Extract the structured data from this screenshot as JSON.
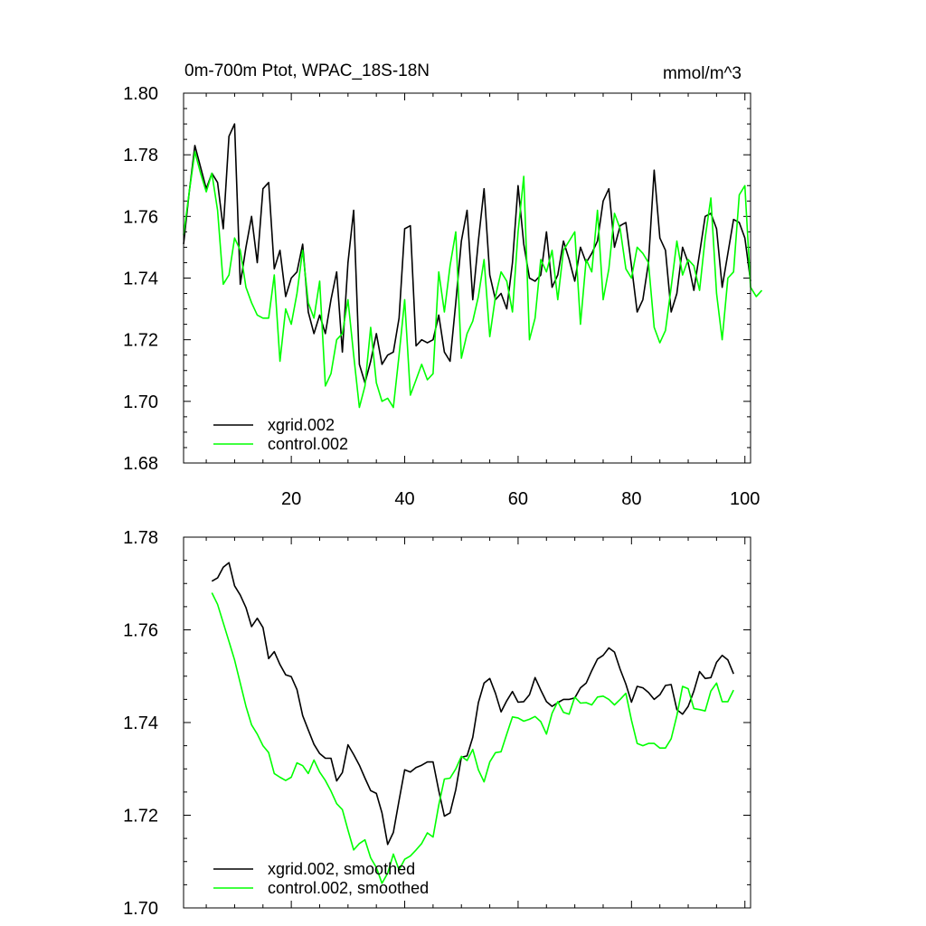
{
  "chart_data": [
    {
      "type": "line",
      "title": "0m-700m Ptot, WPAC_18S-18N",
      "units": "mmol/m^3",
      "xlim": [
        1,
        101
      ],
      "ylim": [
        1.68,
        1.8
      ],
      "xticks": [
        20,
        40,
        60,
        80,
        100
      ],
      "xtick_labels": [
        "20",
        "40",
        "60",
        "80",
        "100"
      ],
      "yticks": [
        1.68,
        1.7,
        1.72,
        1.74,
        1.76,
        1.78,
        1.8
      ],
      "ytick_labels": [
        "1.68",
        "1.70",
        "1.72",
        "1.74",
        "1.76",
        "1.78",
        "1.80"
      ],
      "legend": {
        "position": "bottom-left",
        "entries": [
          "xgrid.002",
          "control.002"
        ]
      },
      "series": [
        {
          "name": "xgrid.002",
          "color": "#000000",
          "x_start": 1,
          "values": [
            1.751,
            1.768,
            1.783,
            1.776,
            1.769,
            1.774,
            1.771,
            1.756,
            1.786,
            1.79,
            1.738,
            1.75,
            1.76,
            1.745,
            1.769,
            1.771,
            1.743,
            1.749,
            1.734,
            1.74,
            1.742,
            1.751,
            1.729,
            1.722,
            1.728,
            1.722,
            1.733,
            1.742,
            1.716,
            1.745,
            1.762,
            1.712,
            1.706,
            1.713,
            1.722,
            1.712,
            1.715,
            1.716,
            1.727,
            1.756,
            1.757,
            1.718,
            1.72,
            1.719,
            1.72,
            1.728,
            1.716,
            1.713,
            1.732,
            1.752,
            1.762,
            1.733,
            1.752,
            1.769,
            1.741,
            1.733,
            1.735,
            1.73,
            1.745,
            1.77,
            1.751,
            1.74,
            1.739,
            1.741,
            1.755,
            1.737,
            1.741,
            1.752,
            1.746,
            1.739,
            1.75,
            1.745,
            1.748,
            1.752,
            1.765,
            1.769,
            1.75,
            1.757,
            1.758,
            1.744,
            1.729,
            1.733,
            1.745,
            1.775,
            1.753,
            1.749,
            1.729,
            1.735,
            1.75,
            1.745,
            1.736,
            1.748,
            1.76,
            1.761,
            1.756,
            1.737,
            1.748,
            1.759,
            1.758,
            1.753,
            1.739
          ]
        },
        {
          "name": "control.002",
          "color": "#00ff00",
          "x_start": 1,
          "values": [
            1.754,
            1.768,
            1.781,
            1.774,
            1.768,
            1.774,
            1.762,
            1.738,
            1.741,
            1.753,
            1.749,
            1.737,
            1.732,
            1.728,
            1.727,
            1.727,
            1.741,
            1.713,
            1.73,
            1.725,
            1.735,
            1.749,
            1.732,
            1.727,
            1.739,
            1.705,
            1.709,
            1.72,
            1.722,
            1.733,
            1.715,
            1.698,
            1.705,
            1.724,
            1.706,
            1.7,
            1.701,
            1.698,
            1.715,
            1.733,
            1.702,
            1.707,
            1.712,
            1.707,
            1.709,
            1.742,
            1.729,
            1.744,
            1.755,
            1.714,
            1.722,
            1.726,
            1.734,
            1.746,
            1.721,
            1.734,
            1.742,
            1.739,
            1.729,
            1.755,
            1.773,
            1.72,
            1.727,
            1.746,
            1.742,
            1.749,
            1.733,
            1.749,
            1.752,
            1.755,
            1.725,
            1.746,
            1.742,
            1.762,
            1.733,
            1.743,
            1.761,
            1.756,
            1.743,
            1.74,
            1.75,
            1.748,
            1.745,
            1.724,
            1.719,
            1.723,
            1.737,
            1.752,
            1.741,
            1.746,
            1.744,
            1.736,
            1.753,
            1.766,
            1.735,
            1.72,
            1.74,
            1.742,
            1.767,
            1.77,
            1.737,
            1.734,
            1.736
          ]
        }
      ]
    },
    {
      "type": "line",
      "xlim": [
        1,
        101
      ],
      "ylim": [
        1.7,
        1.78
      ],
      "xticks": [
        20,
        40,
        60,
        80,
        100
      ],
      "yticks": [
        1.7,
        1.72,
        1.74,
        1.76,
        1.78
      ],
      "ytick_labels": [
        "1.70",
        "1.72",
        "1.74",
        "1.76",
        "1.78"
      ],
      "legend": {
        "position": "bottom-left",
        "entries": [
          "xgrid.002, smoothed",
          "control.002, smoothed"
        ]
      },
      "series": [
        {
          "name": "xgrid.002, smoothed",
          "color": "#000000",
          "x_start": 6,
          "values": [
            1.7705,
            1.7712,
            1.7735,
            1.7745,
            1.7695,
            1.7675,
            1.7648,
            1.7607,
            1.7625,
            1.7605,
            1.7538,
            1.7553,
            1.7525,
            1.7503,
            1.7499,
            1.7471,
            1.7415,
            1.7384,
            1.7353,
            1.7333,
            1.7323,
            1.7323,
            1.7274,
            1.7292,
            1.7352,
            1.7331,
            1.7308,
            1.728,
            1.7253,
            1.7247,
            1.7205,
            1.7137,
            1.7163,
            1.7232,
            1.7298,
            1.7293,
            1.7303,
            1.7308,
            1.7315,
            1.7315,
            1.7253,
            1.7198,
            1.7205,
            1.7255,
            1.7325,
            1.7328,
            1.7368,
            1.7443,
            1.7485,
            1.7495,
            1.7463,
            1.7423,
            1.7447,
            1.7467,
            1.7444,
            1.7445,
            1.746,
            1.7497,
            1.747,
            1.7445,
            1.7435,
            1.7443,
            1.745,
            1.745,
            1.7453,
            1.7475,
            1.7485,
            1.7512,
            1.7537,
            1.7545,
            1.7561,
            1.7552,
            1.7515,
            1.7483,
            1.7444,
            1.7478,
            1.7475,
            1.7465,
            1.745,
            1.746,
            1.748,
            1.7482,
            1.7428,
            1.7418,
            1.7435,
            1.7468,
            1.751,
            1.7495,
            1.7497,
            1.753,
            1.7545,
            1.7535,
            1.7505
          ]
        },
        {
          "name": "control.002, smoothed",
          "color": "#00ff00",
          "x_start": 6,
          "values": [
            1.768,
            1.7655,
            1.7615,
            1.7575,
            1.7535,
            1.7485,
            1.7435,
            1.7395,
            1.7375,
            1.735,
            1.7335,
            1.729,
            1.7282,
            1.7275,
            1.7282,
            1.7313,
            1.7307,
            1.729,
            1.7319,
            1.7293,
            1.7275,
            1.7252,
            1.7225,
            1.7212,
            1.7168,
            1.7125,
            1.7139,
            1.7147,
            1.7108,
            1.7087,
            1.7053,
            1.7075,
            1.7116,
            1.7082,
            1.7105,
            1.7112,
            1.7125,
            1.7139,
            1.7162,
            1.7153,
            1.7222,
            1.7278,
            1.728,
            1.73,
            1.7327,
            1.7318,
            1.7342,
            1.7298,
            1.7272,
            1.7315,
            1.7335,
            1.7337,
            1.7375,
            1.7412,
            1.741,
            1.7403,
            1.7407,
            1.7413,
            1.7402,
            1.7375,
            1.742,
            1.7445,
            1.7422,
            1.7418,
            1.7455,
            1.7442,
            1.7443,
            1.7438,
            1.7455,
            1.7457,
            1.745,
            1.7438,
            1.745,
            1.7463,
            1.7405,
            1.7355,
            1.735,
            1.7355,
            1.7355,
            1.7345,
            1.7345,
            1.7365,
            1.7415,
            1.7478,
            1.7473,
            1.743,
            1.7428,
            1.7425,
            1.7468,
            1.7485,
            1.7445,
            1.7445,
            1.747
          ]
        }
      ]
    }
  ]
}
